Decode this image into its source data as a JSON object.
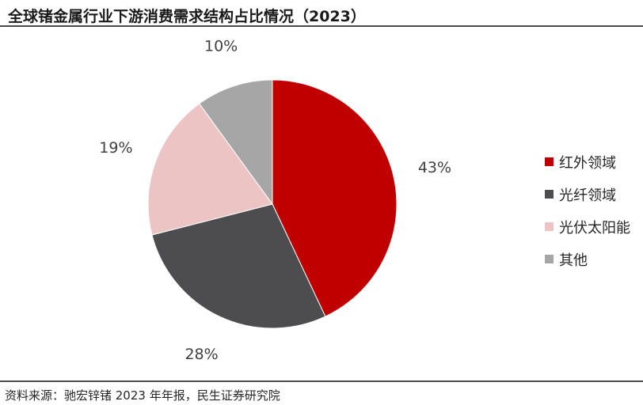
{
  "header": {
    "title": "全球锗金属行业下游消费需求结构占比情况（2023）"
  },
  "chart_data": {
    "type": "pie",
    "title": "全球锗金属行业下游消费需求结构占比情况（2023）",
    "unit": "%",
    "start_angle_deg": 0,
    "direction": "clockwise",
    "legend_position": "right",
    "slices": [
      {
        "name": "红外领域",
        "value": 43,
        "label": "43%",
        "color": "#c00000"
      },
      {
        "name": "光纤领域",
        "value": 28,
        "label": "28%",
        "color": "#4d4d4f"
      },
      {
        "name": "光伏太阳能",
        "value": 19,
        "label": "19%",
        "color": "#ecc4c4"
      },
      {
        "name": "其他",
        "value": 10,
        "label": "10%",
        "color": "#a6a6a6"
      }
    ]
  },
  "footer": {
    "source": "资料来源：驰宏锌锗 2023 年年报，民生证券研究院"
  }
}
